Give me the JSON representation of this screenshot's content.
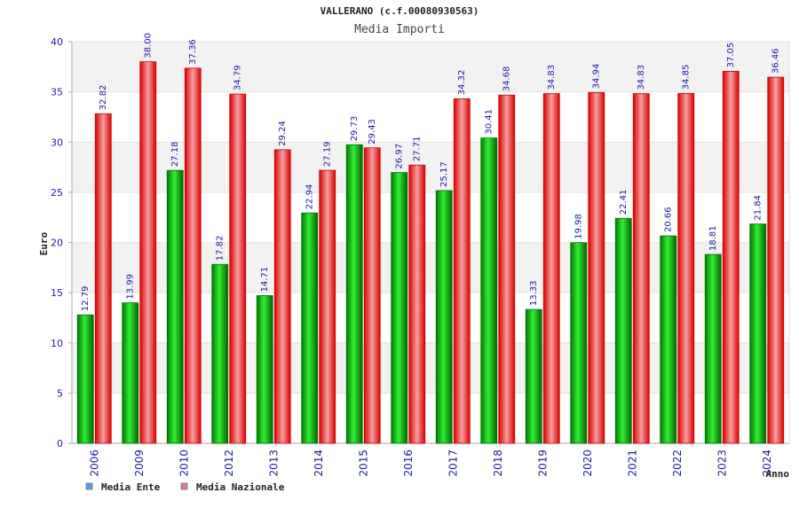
{
  "chart_data": {
    "type": "bar",
    "title": "VALLERANO (c.f.00080930563)",
    "subtitle": "Media Importi",
    "xlabel": "Anno",
    "ylabel": "Euro",
    "ylim": [
      0,
      40
    ],
    "yticks": [
      0,
      5,
      10,
      15,
      20,
      25,
      30,
      35,
      40
    ],
    "grid": "horizontal bands",
    "legend_position": "bottom-left",
    "categories": [
      "2006",
      "2009",
      "2010",
      "2012",
      "2013",
      "2014",
      "2015",
      "2016",
      "2017",
      "2018",
      "2019",
      "2020",
      "2021",
      "2022",
      "2023",
      "2024"
    ],
    "series": [
      {
        "name": "Media Ente",
        "color": "#00b000",
        "legend_color": "#5aa0e6",
        "values": [
          12.79,
          13.99,
          27.18,
          17.82,
          14.71,
          22.94,
          29.73,
          26.97,
          25.17,
          30.41,
          13.33,
          19.98,
          22.41,
          20.66,
          18.81,
          21.84
        ],
        "labels": [
          "12.79",
          "13.99",
          "27.18",
          "17.82",
          "14.71",
          "22.94",
          "29.73",
          "26.97",
          "25.17",
          "30.41",
          "13.33",
          "19.98",
          "22.41",
          "20.66",
          "18.81",
          "21.84"
        ]
      },
      {
        "name": "Media Nazionale",
        "color": "#ee0000",
        "legend_color": "#d878a8",
        "values": [
          32.82,
          38.0,
          37.36,
          34.79,
          29.24,
          27.19,
          29.43,
          27.71,
          34.32,
          34.68,
          34.83,
          34.94,
          34.83,
          34.85,
          37.05,
          36.46
        ],
        "labels": [
          "32.82",
          "38.00",
          "37.36",
          "34.79",
          "29.24",
          "27.19",
          "29.43",
          "27.71",
          "34.32",
          "34.68",
          "34.83",
          "34.94",
          "34.83",
          "34.85",
          "37.05",
          "36.46"
        ]
      }
    ]
  }
}
